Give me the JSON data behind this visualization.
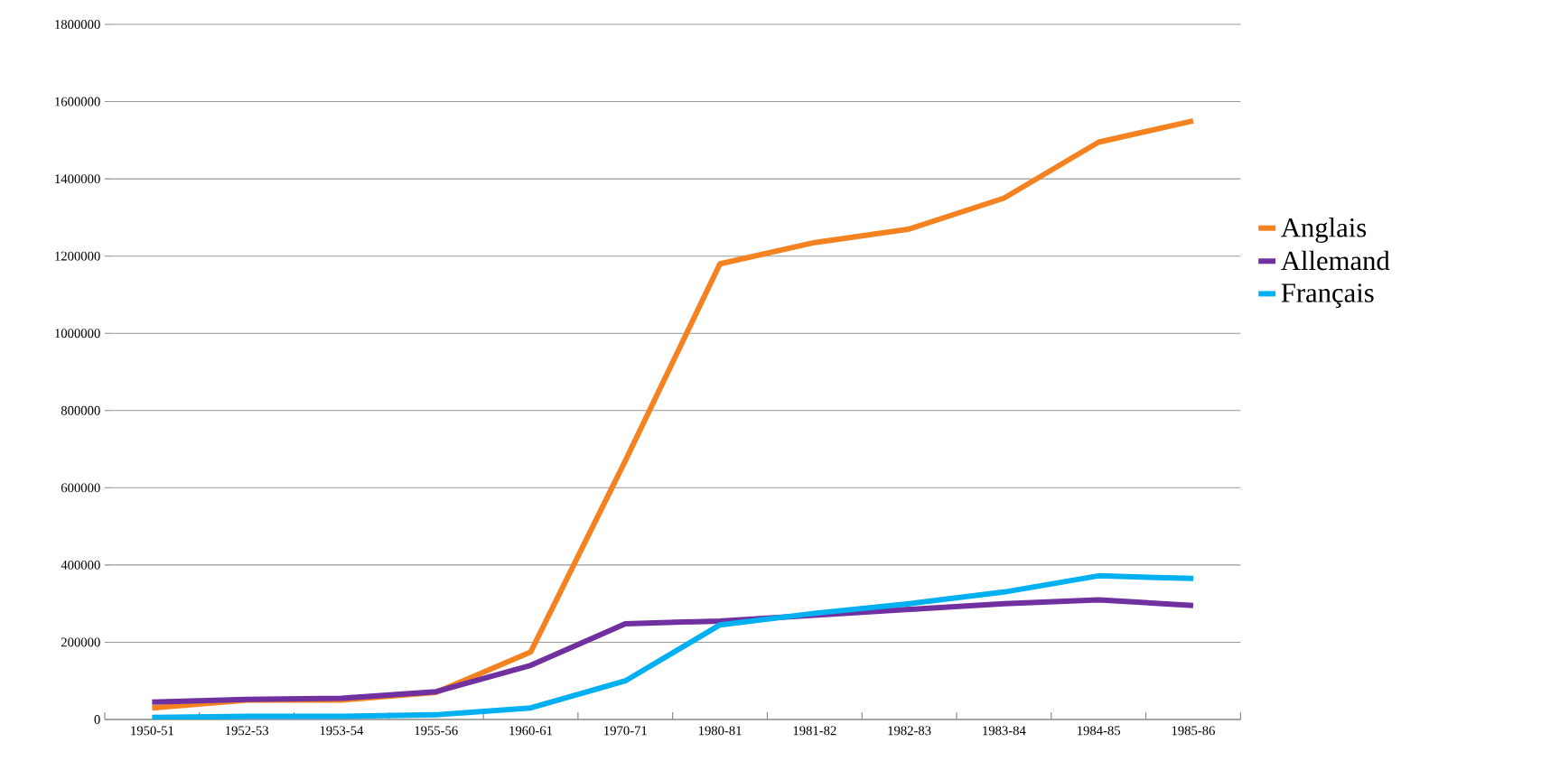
{
  "chart_data": {
    "type": "line",
    "categories": [
      "1950-51",
      "1952-53",
      "1953-54",
      "1955-56",
      "1960-61",
      "1970-71",
      "1980-81",
      "1981-82",
      "1982-83",
      "1983-84",
      "1984-85",
      "1985-86"
    ],
    "series": [
      {
        "name": "Anglais",
        "color": "#f58220",
        "values": [
          30000,
          50000,
          50000,
          70000,
          175000,
          670000,
          1180000,
          1235000,
          1270000,
          1350000,
          1495000,
          1550000
        ]
      },
      {
        "name": "Allemand",
        "color": "#7030a0",
        "values": [
          45000,
          52000,
          55000,
          72000,
          140000,
          248000,
          255000,
          270000,
          285000,
          300000,
          310000,
          295000
        ]
      },
      {
        "name": "Français",
        "color": "#00b0f0",
        "values": [
          5000,
          8000,
          8000,
          12000,
          30000,
          100000,
          245000,
          275000,
          300000,
          330000,
          372000,
          365000
        ]
      }
    ],
    "ylim": [
      0,
      1800000
    ],
    "yticks": [
      0,
      200000,
      400000,
      600000,
      800000,
      1000000,
      1200000,
      1400000,
      1600000,
      1800000
    ],
    "grid": "y",
    "legend": "right",
    "marker": "none",
    "line_style": "solid"
  }
}
